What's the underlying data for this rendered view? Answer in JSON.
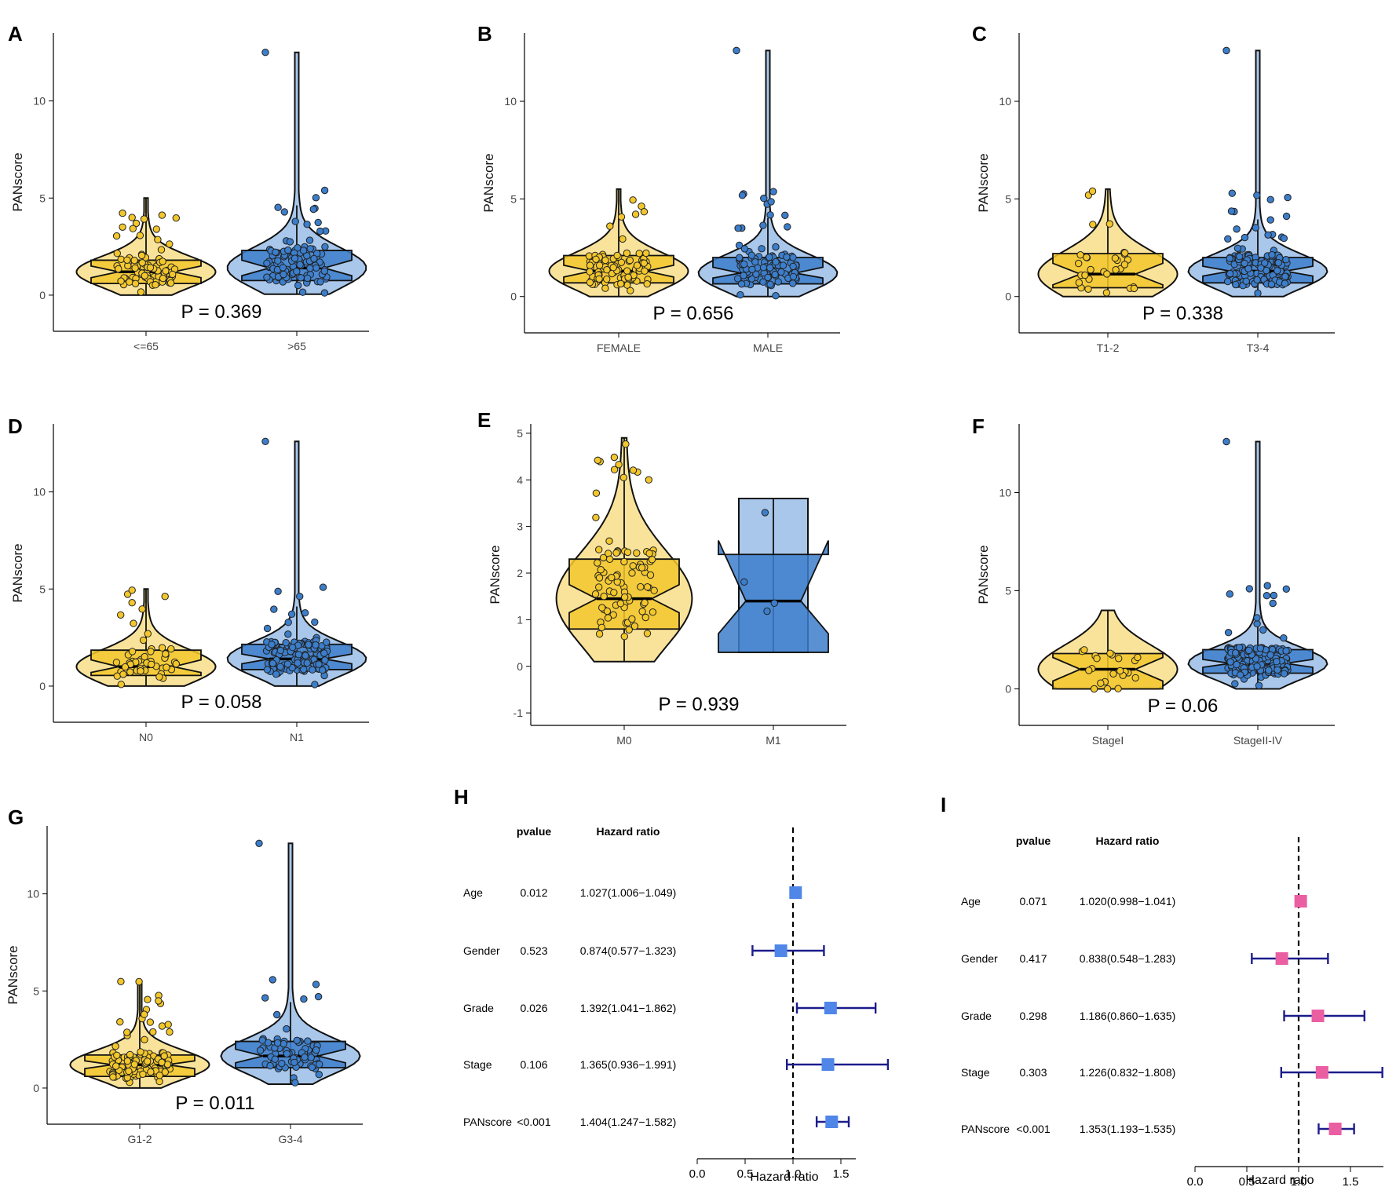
{
  "figure": {
    "colors": {
      "group1_fill": "#f3c72c",
      "group1_violin": "#f9e39b",
      "group2_fill": "#3c7ecb",
      "group2_violin": "#a9c7ea",
      "outline": "#111111",
      "forest_h_box": "#4f86e8",
      "forest_i_box": "#ea5ea2",
      "whisker": "#1c1c8c"
    }
  },
  "chart_data": [
    {
      "panel": "A",
      "type": "violin",
      "ylabel": "PANscore",
      "yticks": [
        0,
        5,
        10
      ],
      "ylim": [
        -1.7,
        13.5
      ],
      "pvalue_text": "P = 0.369",
      "groups": [
        {
          "label": "<=65",
          "min": 0.0,
          "q1": 0.6,
          "median": 1.2,
          "q3": 1.8,
          "max": 5.0,
          "notch": [
            0.9,
            1.5
          ],
          "n_points": 95
        },
        {
          "label": ">65",
          "min": 0.05,
          "q1": 0.75,
          "median": 1.4,
          "q3": 2.3,
          "max": 12.5,
          "notch": [
            1.0,
            1.8
          ],
          "n_points": 105
        }
      ]
    },
    {
      "panel": "B",
      "type": "violin",
      "ylabel": "PANscore",
      "yticks": [
        0,
        5,
        10
      ],
      "ylim": [
        -1.7,
        13.5
      ],
      "pvalue_text": "P = 0.656",
      "groups": [
        {
          "label": "FEMALE",
          "min": 0.0,
          "q1": 0.7,
          "median": 1.3,
          "q3": 2.1,
          "max": 5.5,
          "notch": [
            1.0,
            1.6
          ],
          "n_points": 95
        },
        {
          "label": "MALE",
          "min": 0.0,
          "q1": 0.65,
          "median": 1.2,
          "q3": 2.0,
          "max": 12.6,
          "notch": [
            0.95,
            1.5
          ],
          "n_points": 105
        }
      ]
    },
    {
      "panel": "C",
      "type": "violin",
      "ylabel": "PANscore",
      "yticks": [
        0,
        5,
        10
      ],
      "ylim": [
        -1.7,
        13.5
      ],
      "pvalue_text": "P = 0.338",
      "groups": [
        {
          "label": "T1-2",
          "min": 0.0,
          "q1": 0.45,
          "median": 1.15,
          "q3": 2.2,
          "max": 5.5,
          "notch": [
            0.6,
            1.7
          ],
          "n_points": 30
        },
        {
          "label": "T3-4",
          "min": 0.0,
          "q1": 0.7,
          "median": 1.3,
          "q3": 2.0,
          "max": 12.6,
          "notch": [
            1.05,
            1.55
          ],
          "n_points": 160
        }
      ]
    },
    {
      "panel": "D",
      "type": "violin",
      "ylabel": "PANscore",
      "yticks": [
        0,
        5,
        10
      ],
      "ylim": [
        -1.7,
        13.5
      ],
      "pvalue_text": "P = 0.058",
      "groups": [
        {
          "label": "N0",
          "min": 0.0,
          "q1": 0.55,
          "median": 1.0,
          "q3": 1.85,
          "max": 5.0,
          "notch": [
            0.7,
            1.35
          ],
          "n_points": 50
        },
        {
          "label": "N1",
          "min": 0.0,
          "q1": 0.85,
          "median": 1.4,
          "q3": 2.15,
          "max": 12.6,
          "notch": [
            1.15,
            1.65
          ],
          "n_points": 140
        }
      ]
    },
    {
      "panel": "E",
      "type": "violin",
      "ylabel": "PANscore",
      "yticks": [
        -1,
        0,
        1,
        2,
        3,
        4,
        5
      ],
      "ylim": [
        -1.2,
        5.2
      ],
      "pvalue_text": "P = 0.939",
      "groups": [
        {
          "label": "M0",
          "min": 0.1,
          "q1": 0.8,
          "median": 1.45,
          "q3": 2.3,
          "max": 4.9,
          "notch": [
            1.15,
            1.75
          ],
          "n_points": 90
        },
        {
          "label": "M1",
          "min": 0.3,
          "q1": 0.3,
          "median": 1.4,
          "q3": 2.4,
          "max": 3.6,
          "notch": [
            0.7,
            2.7
          ],
          "n_points": 4
        }
      ]
    },
    {
      "panel": "F",
      "type": "violin",
      "ylabel": "PANscore",
      "yticks": [
        0,
        5,
        10
      ],
      "ylim": [
        -1.7,
        13.5
      ],
      "pvalue_text": "P = 0.06",
      "groups": [
        {
          "label": "StageI",
          "min": 0.0,
          "q1": 0.0,
          "median": 1.0,
          "q3": 1.8,
          "max": 4.0,
          "notch": [
            0.4,
            1.6
          ],
          "n_points": 22
        },
        {
          "label": "StageII-IV",
          "min": 0.0,
          "q1": 0.8,
          "median": 1.3,
          "q3": 2.0,
          "max": 12.6,
          "notch": [
            1.1,
            1.5
          ],
          "n_points": 170
        }
      ]
    },
    {
      "panel": "G",
      "type": "violin",
      "ylabel": "PANscore",
      "yticks": [
        0,
        5,
        10
      ],
      "ylim": [
        -1.7,
        13.5
      ],
      "pvalue_text": "P = 0.011",
      "groups": [
        {
          "label": "G1-2",
          "min": 0.0,
          "q1": 0.6,
          "median": 1.2,
          "q3": 1.7,
          "max": 5.5,
          "notch": [
            1.0,
            1.4
          ],
          "n_points": 120
        },
        {
          "label": "G3-4",
          "min": 0.2,
          "q1": 1.05,
          "median": 1.65,
          "q3": 2.4,
          "max": 12.6,
          "notch": [
            1.3,
            2.0
          ],
          "n_points": 70
        }
      ]
    },
    {
      "panel": "H",
      "type": "forest",
      "header_pvalue": "pvalue",
      "header_hr": "Hazard ratio",
      "xlabel": "Hazard ratio",
      "xticks": [
        "0.0",
        "0.5",
        "1.0",
        "1.5"
      ],
      "xlim": [
        0,
        1.6
      ],
      "reference": 1.0,
      "rows": [
        {
          "label": "Age",
          "pvalue": "0.012",
          "hr_text": "1.027(1.006−1.049)",
          "hr": 1.027,
          "lower": 1.006,
          "upper": 1.049
        },
        {
          "label": "Gender",
          "pvalue": "0.523",
          "hr_text": "0.874(0.577−1.323)",
          "hr": 0.874,
          "lower": 0.577,
          "upper": 1.323
        },
        {
          "label": "Grade",
          "pvalue": "0.026",
          "hr_text": "1.392(1.041−1.862)",
          "hr": 1.392,
          "lower": 1.041,
          "upper": 1.862
        },
        {
          "label": "Stage",
          "pvalue": "0.106",
          "hr_text": "1.365(0.936−1.991)",
          "hr": 1.365,
          "lower": 0.936,
          "upper": 1.991
        },
        {
          "label": "PANscore",
          "pvalue": "<0.001",
          "hr_text": "1.404(1.247−1.582)",
          "hr": 1.404,
          "lower": 1.247,
          "upper": 1.582
        }
      ]
    },
    {
      "panel": "I",
      "type": "forest",
      "header_pvalue": "pvalue",
      "header_hr": "Hazard ratio",
      "xlabel": "Hazard ratio",
      "xticks": [
        "0.0",
        "0.5",
        "1.0",
        "1.5"
      ],
      "xlim": [
        0,
        1.8
      ],
      "reference": 1.0,
      "rows": [
        {
          "label": "Age",
          "pvalue": "0.071",
          "hr_text": "1.020(0.998−1.041)",
          "hr": 1.02,
          "lower": 0.998,
          "upper": 1.041
        },
        {
          "label": "Gender",
          "pvalue": "0.417",
          "hr_text": "0.838(0.548−1.283)",
          "hr": 0.838,
          "lower": 0.548,
          "upper": 1.283
        },
        {
          "label": "Grade",
          "pvalue": "0.298",
          "hr_text": "1.186(0.860−1.635)",
          "hr": 1.186,
          "lower": 0.86,
          "upper": 1.635
        },
        {
          "label": "Stage",
          "pvalue": "0.303",
          "hr_text": "1.226(0.832−1.808)",
          "hr": 1.226,
          "lower": 0.832,
          "upper": 1.808
        },
        {
          "label": "PANscore",
          "pvalue": "<0.001",
          "hr_text": "1.353(1.193−1.535)",
          "hr": 1.353,
          "lower": 1.193,
          "upper": 1.535
        }
      ]
    }
  ]
}
